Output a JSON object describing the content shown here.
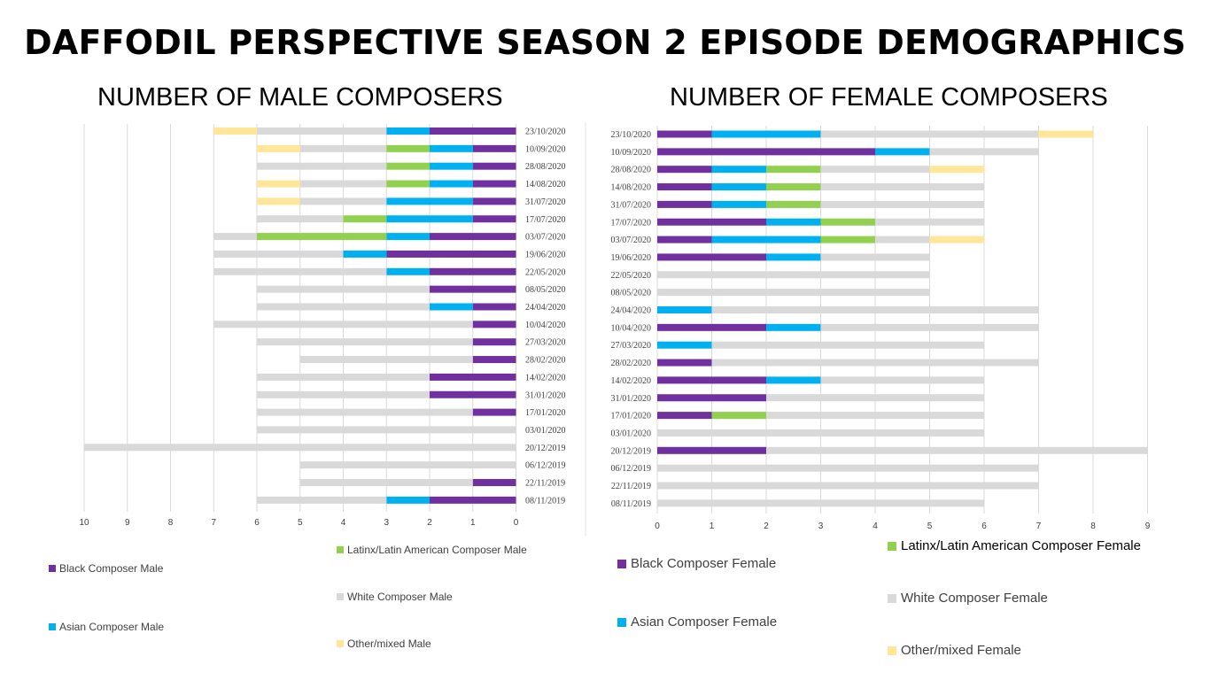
{
  "title": "DAFFODIL PERSPECTIVE SEASON 2 EPISODE DEMOGRAPHICS",
  "colors": {
    "black": "#7030a0",
    "asian": "#00b0f0",
    "latinx": "#92d050",
    "white": "#d9d9d9",
    "other": "#ffe699",
    "grid": "#d9d9d9",
    "axis_text": "#404040"
  },
  "chart_data": [
    {
      "type": "bar",
      "orientation": "horizontal-stacked",
      "title": "NUMBER OF MALE COMPOSERS",
      "x_reversed": true,
      "xlim": [
        0,
        10
      ],
      "x_ticks": [
        "0",
        "1",
        "2",
        "3",
        "4",
        "5",
        "6",
        "7",
        "8",
        "9",
        "10"
      ],
      "categories": [
        "23/10/2020",
        "10/09/2020",
        "28/08/2020",
        "14/08/2020",
        "31/07/2020",
        "17/07/2020",
        "03/07/2020",
        "19/06/2020",
        "22/05/2020",
        "08/05/2020",
        "24/04/2020",
        "10/04/2020",
        "27/03/2020",
        "28/02/2020",
        "14/02/2020",
        "31/01/2020",
        "17/01/2020",
        "03/01/2020",
        "20/12/2019",
        "06/12/2019",
        "22/11/2019",
        "08/11/2019"
      ],
      "series": [
        {
          "name": "Black Composer Male",
          "color_key": "black",
          "values": [
            2,
            1,
            1,
            1,
            1,
            1,
            2,
            3,
            2,
            2,
            1,
            1,
            1,
            1,
            2,
            2,
            1,
            0,
            0,
            0,
            1,
            2
          ]
        },
        {
          "name": "Asian Composer Male",
          "color_key": "asian",
          "values": [
            1,
            1,
            1,
            1,
            2,
            2,
            1,
            1,
            1,
            0,
            1,
            0,
            0,
            0,
            0,
            0,
            0,
            0,
            0,
            0,
            0,
            1
          ]
        },
        {
          "name": "Latinx/Latin American Composer Male",
          "color_key": "latinx",
          "values": [
            0,
            1,
            1,
            1,
            0,
            1,
            3,
            0,
            0,
            0,
            0,
            0,
            0,
            0,
            0,
            0,
            0,
            0,
            0,
            0,
            0,
            0
          ]
        },
        {
          "name": "White Composer Male",
          "color_key": "white",
          "values": [
            3,
            2,
            3,
            2,
            2,
            2,
            1,
            3,
            4,
            4,
            4,
            6,
            5,
            4,
            4,
            4,
            5,
            6,
            10,
            5,
            4,
            3
          ]
        },
        {
          "name": "Other/mixed Male",
          "color_key": "other",
          "values": [
            1,
            1,
            0,
            1,
            1,
            0,
            0,
            0,
            0,
            0,
            0,
            0,
            0,
            0,
            0,
            0,
            0,
            0,
            0,
            0,
            0,
            0
          ]
        }
      ]
    },
    {
      "type": "bar",
      "orientation": "horizontal-stacked",
      "title": "NUMBER OF FEMALE COMPOSERS",
      "x_reversed": false,
      "xlim": [
        0,
        9
      ],
      "x_ticks": [
        "0",
        "1",
        "2",
        "3",
        "4",
        "5",
        "6",
        "7",
        "8",
        "9"
      ],
      "categories": [
        "23/10/2020",
        "10/09/2020",
        "28/08/2020",
        "14/08/2020",
        "31/07/2020",
        "17/07/2020",
        "03/07/2020",
        "19/06/2020",
        "22/05/2020",
        "08/05/2020",
        "24/04/2020",
        "10/04/2020",
        "27/03/2020",
        "28/02/2020",
        "14/02/2020",
        "31/01/2020",
        "17/01/2020",
        "03/01/2020",
        "20/12/2019",
        "06/12/2019",
        "22/11/2019",
        "08/11/2019"
      ],
      "series": [
        {
          "name": "Black Composer Female",
          "color_key": "black",
          "values": [
            1,
            4,
            1,
            1,
            1,
            2,
            1,
            2,
            0,
            0,
            0,
            2,
            0,
            1,
            2,
            2,
            1,
            0,
            2,
            0,
            0,
            0
          ]
        },
        {
          "name": "Asian Composer Female",
          "color_key": "asian",
          "values": [
            2,
            1,
            1,
            1,
            1,
            1,
            2,
            1,
            0,
            0,
            1,
            1,
            1,
            0,
            1,
            0,
            0,
            0,
            0,
            0,
            0,
            0
          ]
        },
        {
          "name": "Latinx/Latin American Composer Female",
          "color_key": "latinx",
          "values": [
            0,
            0,
            1,
            1,
            1,
            1,
            1,
            0,
            0,
            0,
            0,
            0,
            0,
            0,
            0,
            0,
            1,
            0,
            0,
            0,
            0,
            0
          ]
        },
        {
          "name": "White Composer Female",
          "color_key": "white",
          "values": [
            4,
            2,
            2,
            3,
            3,
            2,
            1,
            2,
            5,
            5,
            6,
            4,
            5,
            6,
            3,
            4,
            4,
            6,
            7,
            7,
            7,
            6
          ]
        },
        {
          "name": "Other/mixed Female",
          "color_key": "other",
          "values": [
            1,
            0,
            1,
            0,
            0,
            0,
            1,
            0,
            0,
            0,
            0,
            0,
            0,
            0,
            0,
            0,
            0,
            0,
            0,
            0,
            0,
            0
          ]
        }
      ]
    }
  ]
}
